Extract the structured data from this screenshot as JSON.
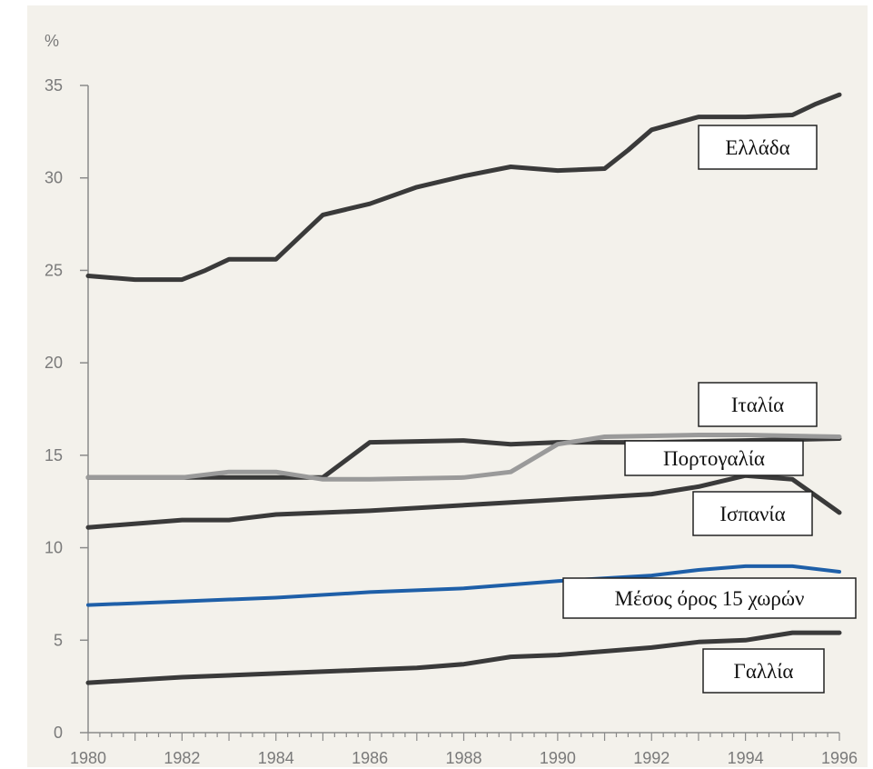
{
  "chart_data": {
    "type": "line",
    "ylabel": "%",
    "xlabel": "",
    "title": "",
    "xlim": [
      1980,
      1996
    ],
    "ylim": [
      0,
      35
    ],
    "x_ticks": [
      1980,
      1982,
      1984,
      1986,
      1988,
      1990,
      1992,
      1994,
      1996
    ],
    "x_tick_labels": [
      "1980",
      "1982",
      "1984",
      "1986",
      "1988",
      "1990",
      "1992",
      "1994",
      "1996"
    ],
    "y_ticks": [
      0,
      5,
      10,
      15,
      20,
      25,
      30,
      35
    ],
    "y_tick_labels": [
      "0",
      "5",
      "10",
      "15",
      "20",
      "25",
      "30",
      "35"
    ],
    "grid": false,
    "series": [
      {
        "name": "Ελλάδα",
        "color": "#3a3a3a",
        "points": [
          [
            1980,
            24.7
          ],
          [
            1981,
            24.5
          ],
          [
            1982,
            24.5
          ],
          [
            1982.5,
            25.0
          ],
          [
            1983,
            25.6
          ],
          [
            1984,
            25.6
          ],
          [
            1984.5,
            26.8
          ],
          [
            1985,
            28.0
          ],
          [
            1986,
            28.6
          ],
          [
            1987,
            29.5
          ],
          [
            1988,
            30.1
          ],
          [
            1989,
            30.6
          ],
          [
            1990,
            30.4
          ],
          [
            1991,
            30.5
          ],
          [
            1991.5,
            31.5
          ],
          [
            1992,
            32.6
          ],
          [
            1993,
            33.3
          ],
          [
            1994,
            33.3
          ],
          [
            1995,
            33.4
          ],
          [
            1995.5,
            34.0
          ],
          [
            1996,
            34.5
          ]
        ]
      },
      {
        "name": "Ιταλία",
        "color": "#3a3a3a",
        "points": [
          [
            1980,
            13.8
          ],
          [
            1985,
            13.8
          ],
          [
            1986,
            15.7
          ],
          [
            1988,
            15.8
          ],
          [
            1989,
            15.6
          ],
          [
            1990,
            15.7
          ],
          [
            1992,
            15.7
          ],
          [
            1994,
            15.8
          ],
          [
            1996,
            15.9
          ]
        ]
      },
      {
        "name": "Πορτογαλία",
        "color": "#9a9a9a",
        "points": [
          [
            1980,
            13.8
          ],
          [
            1982,
            13.8
          ],
          [
            1983,
            14.1
          ],
          [
            1984,
            14.1
          ],
          [
            1985,
            13.7
          ],
          [
            1986,
            13.7
          ],
          [
            1988,
            13.8
          ],
          [
            1989,
            14.1
          ],
          [
            1990,
            15.6
          ],
          [
            1991,
            16.0
          ],
          [
            1993,
            16.1
          ],
          [
            1994,
            16.1
          ],
          [
            1996,
            16.0
          ]
        ]
      },
      {
        "name": "Ισπανία",
        "color": "#3a3a3a",
        "points": [
          [
            1980,
            11.1
          ],
          [
            1982,
            11.5
          ],
          [
            1983,
            11.5
          ],
          [
            1984,
            11.8
          ],
          [
            1986,
            12.0
          ],
          [
            1988,
            12.3
          ],
          [
            1990,
            12.6
          ],
          [
            1992,
            12.9
          ],
          [
            1993,
            13.3
          ],
          [
            1994,
            13.9
          ],
          [
            1995,
            13.7
          ],
          [
            1995.5,
            12.8
          ],
          [
            1996,
            11.9
          ]
        ]
      },
      {
        "name": "Μέσος όρος 15 χωρών",
        "color": "#1e5fa8",
        "points": [
          [
            1980,
            6.9
          ],
          [
            1982,
            7.1
          ],
          [
            1984,
            7.3
          ],
          [
            1986,
            7.6
          ],
          [
            1988,
            7.8
          ],
          [
            1989,
            8.0
          ],
          [
            1990,
            8.2
          ],
          [
            1992,
            8.5
          ],
          [
            1993,
            8.8
          ],
          [
            1994,
            9.0
          ],
          [
            1995,
            9.0
          ],
          [
            1996,
            8.7
          ]
        ]
      },
      {
        "name": "Γαλλία",
        "color": "#3a3a3a",
        "points": [
          [
            1980,
            2.7
          ],
          [
            1982,
            3.0
          ],
          [
            1984,
            3.2
          ],
          [
            1986,
            3.4
          ],
          [
            1987,
            3.5
          ],
          [
            1988,
            3.7
          ],
          [
            1989,
            4.1
          ],
          [
            1990,
            4.2
          ],
          [
            1991,
            4.4
          ],
          [
            1992,
            4.6
          ],
          [
            1993,
            4.9
          ],
          [
            1994,
            5.0
          ],
          [
            1995,
            5.4
          ],
          [
            1996,
            5.4
          ]
        ]
      }
    ]
  }
}
